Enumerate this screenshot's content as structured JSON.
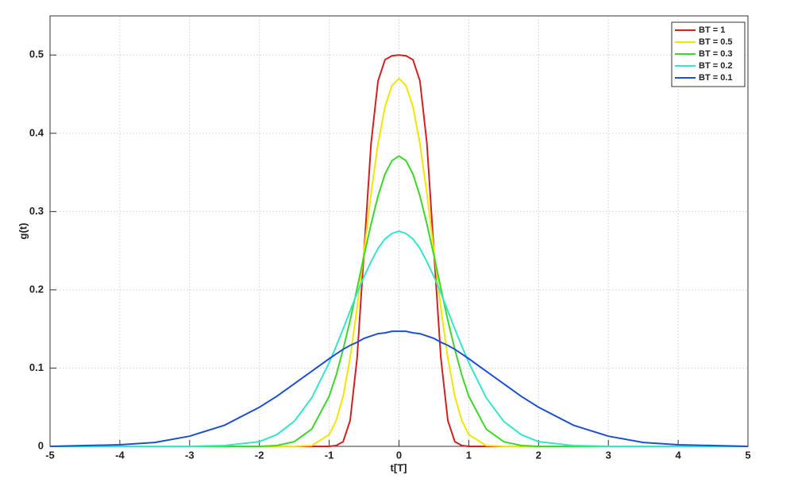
{
  "chart_data": {
    "type": "line",
    "xlabel": "t[T]",
    "ylabel": "g(t)",
    "x": [
      -5,
      -4.5,
      -4,
      -3.5,
      -3,
      -2.5,
      -2,
      -1.75,
      -1.5,
      -1.25,
      -1,
      -0.9,
      -0.8,
      -0.7,
      -0.6,
      -0.5,
      -0.4,
      -0.3,
      -0.2,
      -0.1,
      0,
      0.1,
      0.2,
      0.3,
      0.4,
      0.5,
      0.6,
      0.7,
      0.8,
      0.9,
      1,
      1.25,
      1.5,
      1.75,
      2,
      2.5,
      3,
      3.5,
      4,
      4.5,
      5
    ],
    "series": [
      {
        "name": "BT = 1",
        "color": "#d42020",
        "values": [
          0,
          0,
          0,
          0,
          0,
          0,
          0,
          0,
          0,
          0,
          0,
          0.001,
          0.006,
          0.033,
          0.113,
          0.25,
          0.387,
          0.467,
          0.494,
          0.499,
          0.5,
          0.499,
          0.494,
          0.467,
          0.387,
          0.25,
          0.113,
          0.033,
          0.006,
          0.001,
          0,
          0,
          0,
          0,
          0,
          0,
          0,
          0,
          0,
          0,
          0
        ]
      },
      {
        "name": "BT = 0.5",
        "color": "#f2e600",
        "values": [
          0,
          0,
          0,
          0,
          0,
          0,
          0,
          0,
          0,
          0.001,
          0.015,
          0.033,
          0.064,
          0.113,
          0.177,
          0.25,
          0.323,
          0.387,
          0.434,
          0.461,
          0.47,
          0.461,
          0.434,
          0.387,
          0.323,
          0.25,
          0.177,
          0.113,
          0.064,
          0.033,
          0.015,
          0.001,
          0,
          0,
          0,
          0,
          0,
          0,
          0,
          0,
          0
        ]
      },
      {
        "name": "BT = 0.3",
        "color": "#3cd82a",
        "values": [
          0,
          0,
          0,
          0,
          0,
          0,
          0,
          0.001,
          0.006,
          0.022,
          0.064,
          0.091,
          0.124,
          0.161,
          0.202,
          0.244,
          0.284,
          0.32,
          0.348,
          0.365,
          0.371,
          0.365,
          0.348,
          0.32,
          0.284,
          0.244,
          0.202,
          0.161,
          0.124,
          0.091,
          0.064,
          0.022,
          0.006,
          0.001,
          0,
          0,
          0,
          0,
          0,
          0,
          0
        ]
      },
      {
        "name": "BT = 0.2",
        "color": "#33e6cc",
        "values": [
          0,
          0,
          0,
          0,
          0,
          0.001,
          0.006,
          0.015,
          0.032,
          0.062,
          0.107,
          0.128,
          0.15,
          0.173,
          0.196,
          0.217,
          0.236,
          0.253,
          0.265,
          0.272,
          0.275,
          0.272,
          0.265,
          0.253,
          0.236,
          0.217,
          0.196,
          0.173,
          0.15,
          0.128,
          0.107,
          0.062,
          0.032,
          0.015,
          0.006,
          0.001,
          0,
          0,
          0,
          0,
          0
        ]
      },
      {
        "name": "BT = 0.1",
        "color": "#1f4fd4",
        "values": [
          0,
          0.001,
          0.002,
          0.005,
          0.013,
          0.027,
          0.05,
          0.064,
          0.08,
          0.096,
          0.112,
          0.118,
          0.124,
          0.129,
          0.133,
          0.138,
          0.141,
          0.144,
          0.145,
          0.147,
          0.147,
          0.147,
          0.145,
          0.144,
          0.141,
          0.138,
          0.133,
          0.129,
          0.124,
          0.118,
          0.112,
          0.096,
          0.08,
          0.064,
          0.05,
          0.027,
          0.013,
          0.005,
          0.002,
          0.001,
          0
        ]
      }
    ],
    "xlim": [
      -5,
      5
    ],
    "xticks": [
      -5,
      -4,
      -3,
      -2,
      -1,
      0,
      1,
      2,
      3,
      4,
      5
    ],
    "ylim": [
      0,
      0.55
    ],
    "yticks": [
      0,
      0.1,
      0.2,
      0.3,
      0.4,
      0.5
    ],
    "grid": true,
    "legend": "upper right"
  }
}
